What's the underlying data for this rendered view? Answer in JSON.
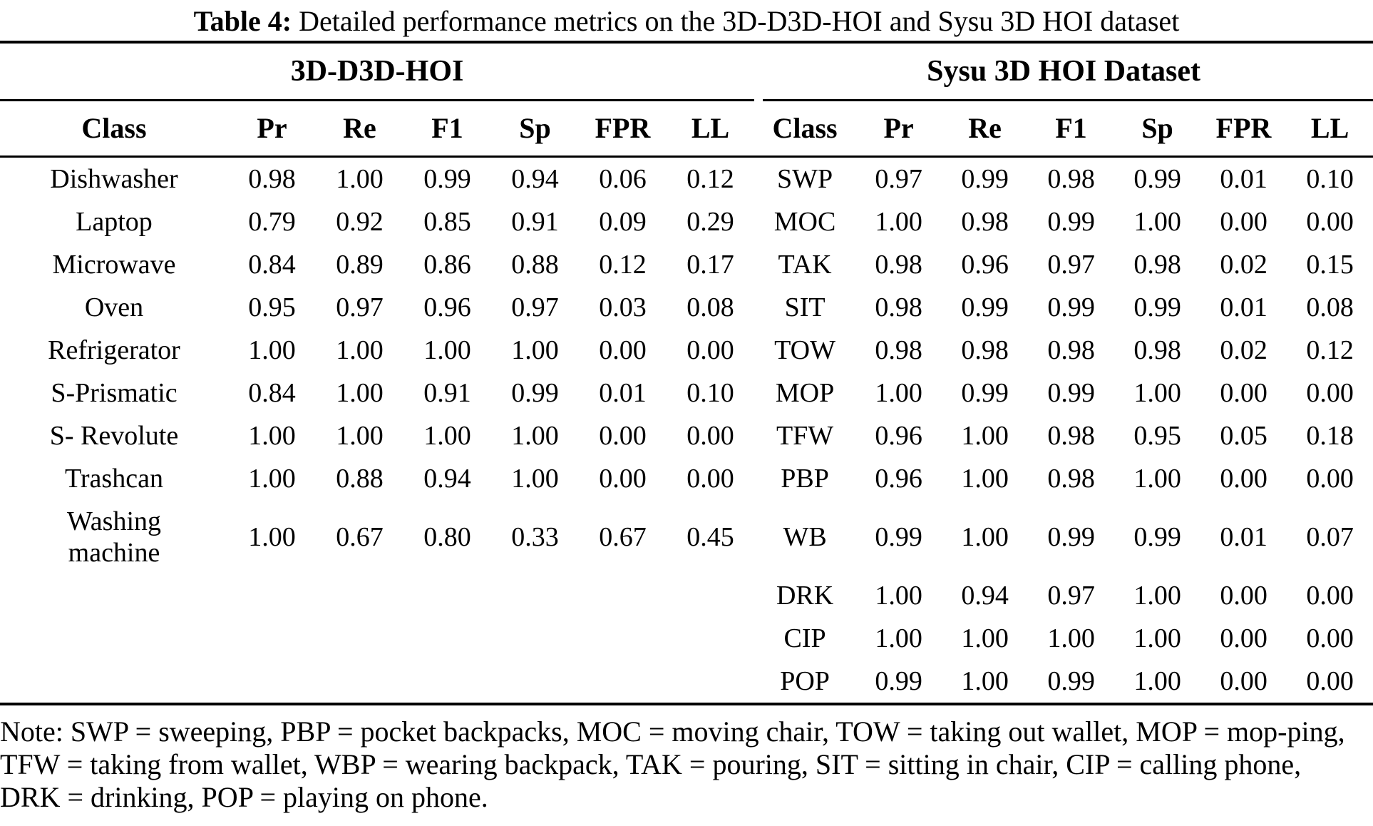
{
  "caption": {
    "label": "Table 4:",
    "text": "Detailed performance metrics on the 3D-D3D-HOI and Sysu 3D HOI dataset"
  },
  "groups": {
    "left": "3D-D3D-HOI",
    "right": "Sysu 3D HOI Dataset"
  },
  "columns": {
    "class": "Class",
    "pr": "Pr",
    "re": "Re",
    "f1": "F1",
    "sp": "Sp",
    "fpr": "FPR",
    "ll": "LL"
  },
  "rows": [
    {
      "left": {
        "class": "Dishwasher",
        "pr": "0.98",
        "re": "1.00",
        "f1": "0.99",
        "sp": "0.94",
        "fpr": "0.06",
        "ll": "0.12"
      },
      "right": {
        "class": "SWP",
        "pr": "0.97",
        "re": "0.99",
        "f1": "0.98",
        "sp": "0.99",
        "fpr": "0.01",
        "ll": "0.10"
      }
    },
    {
      "left": {
        "class": "Laptop",
        "pr": "0.79",
        "re": "0.92",
        "f1": "0.85",
        "sp": "0.91",
        "fpr": "0.09",
        "ll": "0.29"
      },
      "right": {
        "class": "MOC",
        "pr": "1.00",
        "re": "0.98",
        "f1": "0.99",
        "sp": "1.00",
        "fpr": "0.00",
        "ll": "0.00"
      }
    },
    {
      "left": {
        "class": "Microwave",
        "pr": "0.84",
        "re": "0.89",
        "f1": "0.86",
        "sp": "0.88",
        "fpr": "0.12",
        "ll": "0.17"
      },
      "right": {
        "class": "TAK",
        "pr": "0.98",
        "re": "0.96",
        "f1": "0.97",
        "sp": "0.98",
        "fpr": "0.02",
        "ll": "0.15"
      }
    },
    {
      "left": {
        "class": "Oven",
        "pr": "0.95",
        "re": "0.97",
        "f1": "0.96",
        "sp": "0.97",
        "fpr": "0.03",
        "ll": "0.08"
      },
      "right": {
        "class": "SIT",
        "pr": "0.98",
        "re": "0.99",
        "f1": "0.99",
        "sp": "0.99",
        "fpr": "0.01",
        "ll": "0.08"
      }
    },
    {
      "left": {
        "class": "Refrigerator",
        "pr": "1.00",
        "re": "1.00",
        "f1": "1.00",
        "sp": "1.00",
        "fpr": "0.00",
        "ll": "0.00"
      },
      "right": {
        "class": "TOW",
        "pr": "0.98",
        "re": "0.98",
        "f1": "0.98",
        "sp": "0.98",
        "fpr": "0.02",
        "ll": "0.12"
      }
    },
    {
      "left": {
        "class": "S-Prismatic",
        "pr": "0.84",
        "re": "1.00",
        "f1": "0.91",
        "sp": "0.99",
        "fpr": "0.01",
        "ll": "0.10"
      },
      "right": {
        "class": "MOP",
        "pr": "1.00",
        "re": "0.99",
        "f1": "0.99",
        "sp": "1.00",
        "fpr": "0.00",
        "ll": "0.00"
      }
    },
    {
      "left": {
        "class": "S- Revolute",
        "pr": "1.00",
        "re": "1.00",
        "f1": "1.00",
        "sp": "1.00",
        "fpr": "0.00",
        "ll": "0.00"
      },
      "right": {
        "class": "TFW",
        "pr": "0.96",
        "re": "1.00",
        "f1": "0.98",
        "sp": "0.95",
        "fpr": "0.05",
        "ll": "0.18"
      }
    },
    {
      "left": {
        "class": "Trashcan",
        "pr": "1.00",
        "re": "0.88",
        "f1": "0.94",
        "sp": "1.00",
        "fpr": "0.00",
        "ll": "0.00"
      },
      "right": {
        "class": "PBP",
        "pr": "0.96",
        "re": "1.00",
        "f1": "0.98",
        "sp": "1.00",
        "fpr": "0.00",
        "ll": "0.00"
      }
    },
    {
      "left": {
        "class": "Washing machine",
        "pr": "1.00",
        "re": "0.67",
        "f1": "0.80",
        "sp": "0.33",
        "fpr": "0.67",
        "ll": "0.45"
      },
      "right": {
        "class": "WB",
        "pr": "0.99",
        "re": "1.00",
        "f1": "0.99",
        "sp": "0.99",
        "fpr": "0.01",
        "ll": "0.07"
      }
    },
    {
      "right": {
        "class": "DRK",
        "pr": "1.00",
        "re": "0.94",
        "f1": "0.97",
        "sp": "1.00",
        "fpr": "0.00",
        "ll": "0.00"
      }
    },
    {
      "right": {
        "class": "CIP",
        "pr": "1.00",
        "re": "1.00",
        "f1": "1.00",
        "sp": "1.00",
        "fpr": "0.00",
        "ll": "0.00"
      }
    },
    {
      "right": {
        "class": "POP",
        "pr": "0.99",
        "re": "1.00",
        "f1": "0.99",
        "sp": "1.00",
        "fpr": "0.00",
        "ll": "0.00"
      }
    }
  ],
  "note": {
    "lines": [
      "Note: SWP = sweeping, PBP = pocket backpacks, MOC = moving chair, TOW = taking out wallet, MOP = mop-ping,",
      "TFW = taking from wallet, WBP = wearing backpack, TAK = pouring, SIT = sitting in chair, CIP = calling phone,",
      "DRK = drinking, POP = playing on phone."
    ]
  }
}
